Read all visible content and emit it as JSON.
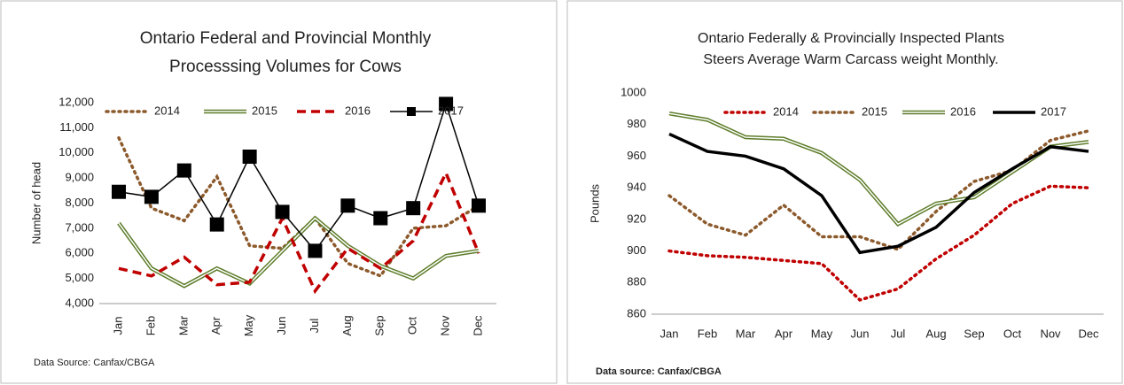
{
  "chart_data": [
    {
      "type": "line",
      "title": [
        "Ontario Federal and Provincial Monthly",
        "Processsing Volumes for Cows"
      ],
      "ylabel": "Number of head",
      "source": "Data Source: Canfax/CBGA",
      "categories": [
        "Jan",
        "Feb",
        "Mar",
        "Apr",
        "May",
        "Jun",
        "Jul",
        "Aug",
        "Sep",
        "Oct",
        "Nov",
        "Dec"
      ],
      "ylim": [
        4000,
        12000
      ],
      "yticks": [
        {
          "value": 4000,
          "label": "4,000"
        },
        {
          "value": 5000,
          "label": "5,000"
        },
        {
          "value": 6000,
          "label": "6,000"
        },
        {
          "value": 7000,
          "label": "7,000"
        },
        {
          "value": 8000,
          "label": "8,000"
        },
        {
          "value": 9000,
          "label": "9,000"
        },
        {
          "value": 10000,
          "label": "10,000"
        },
        {
          "value": 11000,
          "label": "11,000"
        },
        {
          "value": 12000,
          "label": "12,000"
        }
      ],
      "series": [
        {
          "name": "2014",
          "color": "#8c5a2c",
          "style": "dotted",
          "values": [
            10600,
            7800,
            7300,
            9050,
            6300,
            6200,
            7400,
            5600,
            5100,
            7000,
            7100,
            7900
          ]
        },
        {
          "name": "2015",
          "color": "#5e7d2a",
          "style": "double",
          "values": [
            7200,
            5400,
            4700,
            5400,
            4800,
            6100,
            7400,
            6300,
            5500,
            5000,
            5900,
            6100
          ]
        },
        {
          "name": "2016",
          "color": "#c00000",
          "style": "dashed",
          "values": [
            5400,
            5100,
            5850,
            4750,
            4850,
            7400,
            4500,
            6200,
            5400,
            6500,
            9200,
            6000
          ]
        },
        {
          "name": "2017",
          "color": "#000000",
          "style": "solid",
          "marker": "square",
          "values": [
            8450,
            8250,
            9300,
            7150,
            9850,
            7650,
            6100,
            7900,
            7400,
            7800,
            11950,
            7900
          ]
        }
      ]
    },
    {
      "type": "line",
      "title": [
        "Ontario Federally & Provincially Inspected Plants",
        "Steers Average Warm Carcass weight Monthly."
      ],
      "ylabel": "Pounds",
      "source": "Data source: Canfax/CBGA",
      "categories": [
        "Jan",
        "Feb",
        "Mar",
        "Apr",
        "May",
        "Jun",
        "Jul",
        "Aug",
        "Sep",
        "Oct",
        "Nov",
        "Dec"
      ],
      "ylim": [
        860,
        1000
      ],
      "yticks": [
        860,
        880,
        900,
        920,
        940,
        960,
        980,
        1000
      ],
      "series": [
        {
          "name": "2014",
          "color": "#c00000",
          "style": "dotted",
          "values": [
            900,
            897,
            896,
            894,
            892,
            869,
            876,
            895,
            910,
            930,
            941,
            940
          ]
        },
        {
          "name": "2015",
          "color": "#8c5a2c",
          "style": "dotted",
          "values": [
            935,
            917,
            910,
            929,
            909,
            909,
            901,
            925,
            944,
            951,
            970,
            976
          ]
        },
        {
          "name": "2016",
          "color": "#5e7d2a",
          "style": "double",
          "values": [
            987,
            983,
            972,
            971,
            962,
            945,
            917,
            930,
            934,
            950,
            966,
            969
          ]
        },
        {
          "name": "2017",
          "color": "#000000",
          "style": "thick",
          "values": [
            974,
            963,
            960,
            952,
            935,
            899,
            903,
            915,
            937,
            952,
            966,
            963
          ]
        }
      ]
    }
  ]
}
